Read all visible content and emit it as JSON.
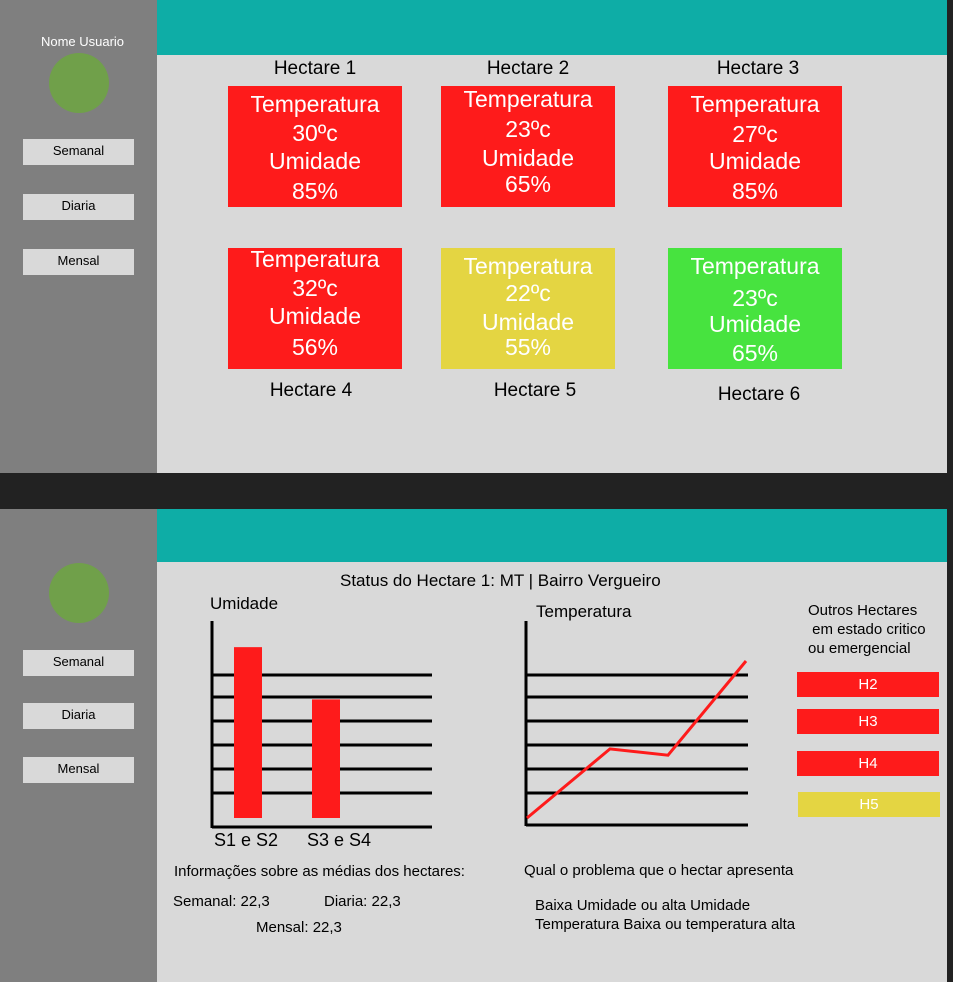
{
  "dashboard": {
    "user_name": "Nome Usuario",
    "nav": [
      "Semanal",
      "Diaria",
      "Mensal"
    ],
    "hectares": [
      {
        "name": "Hectare 1",
        "temp_label": "Temperatura",
        "temp": "30ºc",
        "hum_label": "Umidade",
        "hum": "85%",
        "status": "red"
      },
      {
        "name": "Hectare 2",
        "temp_label": "Temperatura",
        "temp": "23ºc",
        "hum_label": "Umidade",
        "hum": "65%",
        "status": "red"
      },
      {
        "name": "Hectare 3",
        "temp_label": "Temperatura",
        "temp": "27ºc",
        "hum_label": "Umidade",
        "hum": "85%",
        "status": "red"
      },
      {
        "name": "Hectare 4",
        "temp_label": "Temperatura",
        "temp": "32ºc",
        "hum_label": "Umidade",
        "hum": "56%",
        "status": "red"
      },
      {
        "name": "Hectare 5",
        "temp_label": "Temperatura",
        "temp": "22ºc",
        "hum_label": "Umidade",
        "hum": "55%",
        "status": "yellow"
      },
      {
        "name": "Hectare 6",
        "temp_label": "Temperatura",
        "temp": "23ºc",
        "hum_label": "Umidade",
        "hum": "65%",
        "status": "green"
      }
    ]
  },
  "detail": {
    "nav": [
      "Semanal",
      "Diaria",
      "Mensal"
    ],
    "status_title": "Status do Hectare 1:  MT | Bairro Vergueiro",
    "humidity_chart_title": "Umidade",
    "temperature_chart_title": "Temperatura",
    "critical_title": [
      "Outros Hectares",
      " em estado critico",
      "ou emergencial"
    ],
    "critical_hectares": [
      {
        "label": "H2",
        "status": "red"
      },
      {
        "label": "H3",
        "status": "red"
      },
      {
        "label": "H4",
        "status": "red"
      },
      {
        "label": "H5",
        "status": "yellow"
      }
    ],
    "averages_title": "Informações sobre as médias dos hectares:",
    "avg_weekly": "Semanal: 22,3",
    "avg_daily": "Diaria: 22,3",
    "avg_monthly": "Mensal: 22,3",
    "problem_title": "Qual o problema que o hectar apresenta",
    "problem_lines": [
      "Baixa Umidade ou alta Umidade",
      "Temperatura Baixa ou temperatura alta"
    ]
  },
  "colors": {
    "red": "#fe1b1b",
    "yellow": "#e4d542",
    "green": "#47e33f",
    "teal": "#0eada6",
    "sidebar": "#7f7f7f",
    "content": "#d9d9d9",
    "avatar": "#70a04a"
  },
  "chart_data": [
    {
      "type": "bar",
      "title": "Umidade",
      "categories": [
        "S1 e S2",
        "S3 e S4"
      ],
      "values": [
        85,
        59
      ],
      "ylim": [
        0,
        100
      ],
      "grid": true
    },
    {
      "type": "line",
      "title": "Temperatura",
      "x": [
        0,
        1,
        2,
        3
      ],
      "values": [
        0,
        44,
        40,
        100
      ],
      "ylim": [
        0,
        100
      ],
      "grid": true
    }
  ]
}
